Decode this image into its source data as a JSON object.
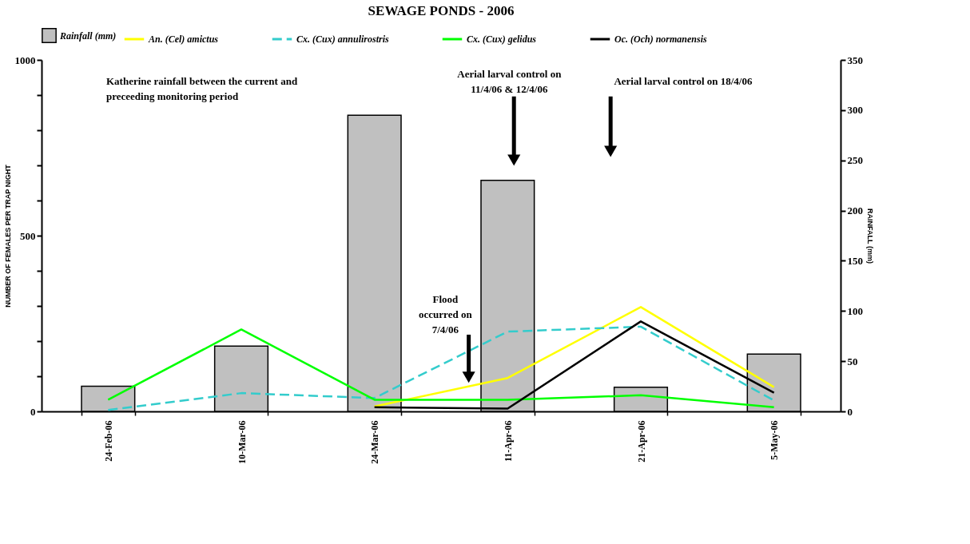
{
  "chart_data": {
    "type": "bar",
    "title": "SEWAGE PONDS - 2006",
    "ylabel": "NUMBER OF FEMALES PER TRAP NIGHT",
    "y2label": "RAINFALL (mm)",
    "categories": [
      "24-Feb-06",
      "10-Mar-06",
      "24-Mar-06",
      "11-Apr-06",
      "21-Apr-06",
      "5-May-06"
    ],
    "series": [
      {
        "name": "Rainfall (mm)",
        "type": "bar",
        "axis": "y2",
        "color": "#c0c0c0",
        "values": [
          25,
          65,
          295,
          230,
          24,
          57
        ]
      },
      {
        "name": "An. (Cel) amictus",
        "type": "line",
        "color": "#ffff00",
        "line_style": "solid",
        "values": [
          null,
          null,
          14,
          95,
          297,
          69
        ]
      },
      {
        "name": "Cx. (Cux) annulirostris",
        "type": "line",
        "color": "#33cccc",
        "line_style": "dashed",
        "values": [
          4,
          52,
          38,
          227,
          241,
          31
        ]
      },
      {
        "name": "Cx. (Cux) gelidus",
        "type": "line",
        "color": "#00ff00",
        "line_style": "solid",
        "values": [
          33,
          233,
          33,
          33,
          46,
          12
        ]
      },
      {
        "name": "Oc. (Och) normanensis",
        "type": "line",
        "color": "#000000",
        "line_style": "solid",
        "values": [
          null,
          null,
          12,
          8,
          256,
          53
        ]
      }
    ],
    "ylim": [
      0,
      1000
    ],
    "yticks": [
      0,
      {
        "value": 100,
        "label": null
      },
      {
        "value": 200,
        "label": null
      },
      {
        "value": 300,
        "label": null
      },
      {
        "value": 400,
        "label": null
      },
      500,
      {
        "value": 600,
        "label": null
      },
      {
        "value": 700,
        "label": null
      },
      {
        "value": 800,
        "label": null
      },
      {
        "value": 900,
        "label": null
      },
      1000
    ],
    "y2lim": [
      0,
      350
    ],
    "y2ticks": [
      0,
      50,
      100,
      150,
      200,
      250,
      300,
      350
    ],
    "legend": "top",
    "annotations": [
      "Katherine rainfall between the current and preceeding monitoring period",
      "Aerial larval control on 11/4/06 & 12/4/06",
      "Aerial larval control on 18/4/06",
      "Flood occurred on 7/4/06"
    ]
  }
}
